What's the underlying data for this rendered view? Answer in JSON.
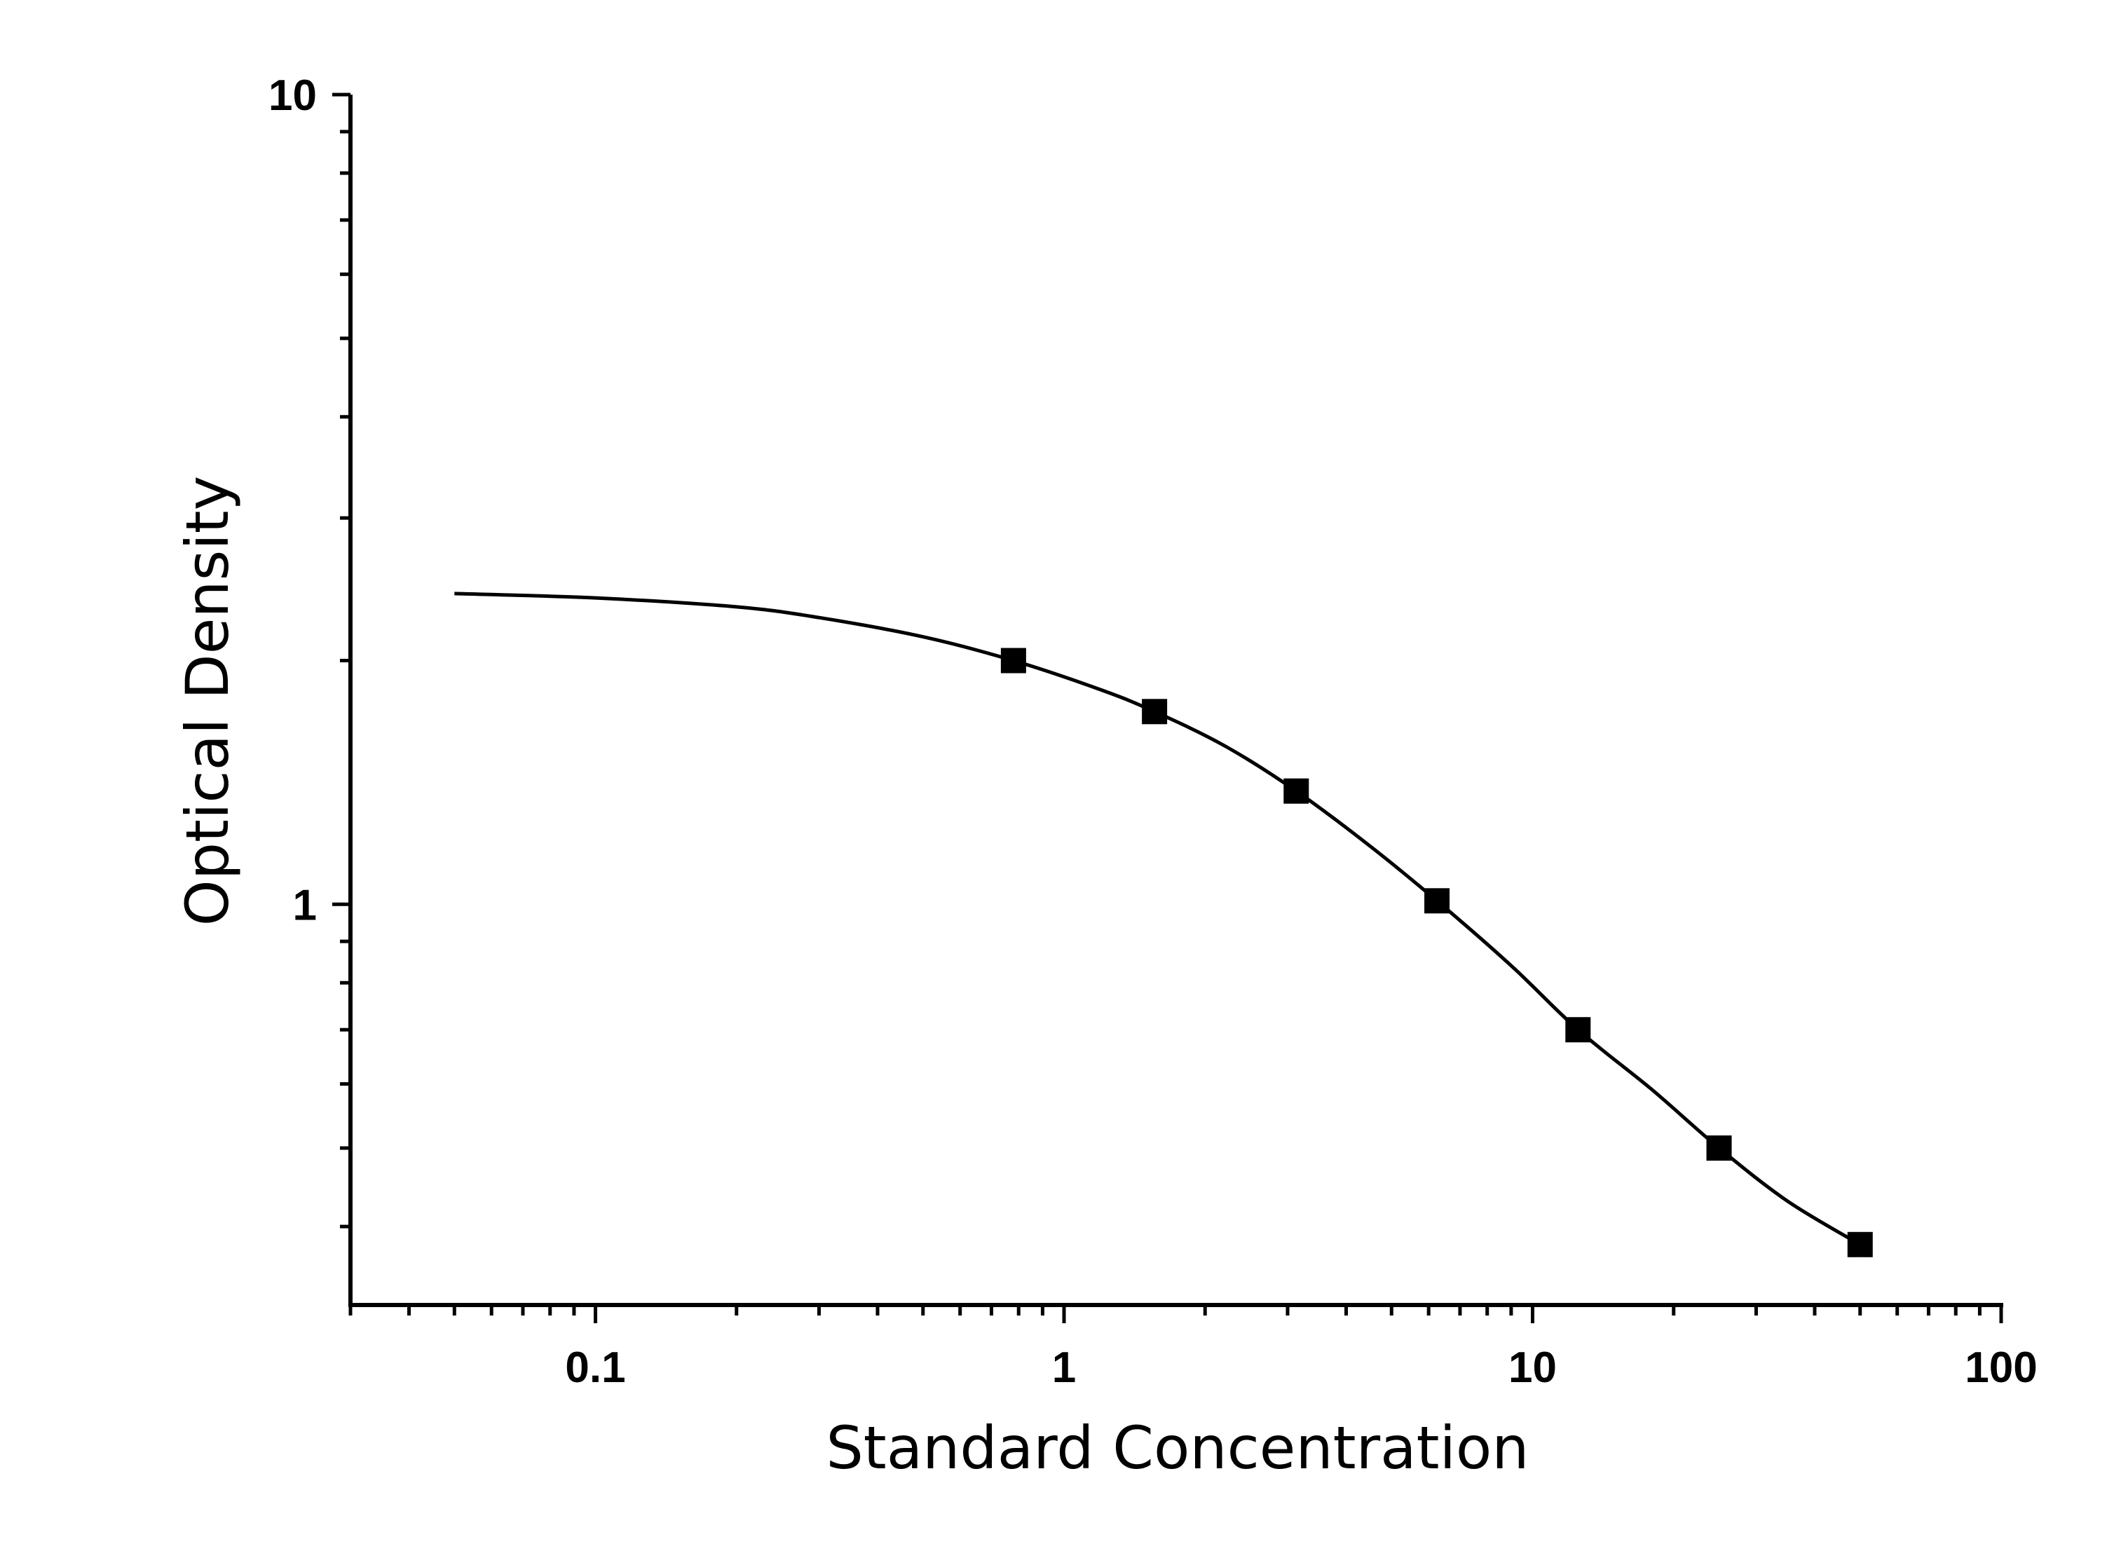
{
  "chart_data": {
    "type": "scatter",
    "xlabel": "Standard Concentration",
    "ylabel": "Optical Density",
    "x_scale": "log",
    "y_scale": "log",
    "xlim": [
      0.03,
      100
    ],
    "ylim": [
      0.32,
      10
    ],
    "x_ticks": [
      {
        "value": 0.1,
        "label": "0.1"
      },
      {
        "value": 1,
        "label": "1"
      },
      {
        "value": 10,
        "label": "10"
      },
      {
        "value": 100,
        "label": "100"
      }
    ],
    "y_ticks": [
      {
        "value": 1,
        "label": "1"
      },
      {
        "value": 10,
        "label": "10"
      }
    ],
    "grid": false,
    "series": [
      {
        "marker": "square",
        "color": "#000000",
        "points": [
          {
            "x": 0.78,
            "y": 2.0
          },
          {
            "x": 1.56,
            "y": 1.73
          },
          {
            "x": 3.13,
            "y": 1.38
          },
          {
            "x": 6.25,
            "y": 1.01
          },
          {
            "x": 12.5,
            "y": 0.7
          },
          {
            "x": 25,
            "y": 0.5
          },
          {
            "x": 50,
            "y": 0.38
          }
        ]
      }
    ],
    "fit_curve": {
      "color": "#000000",
      "points": [
        {
          "x": 0.05,
          "y": 2.42
        },
        {
          "x": 0.1,
          "y": 2.39
        },
        {
          "x": 0.2,
          "y": 2.33
        },
        {
          "x": 0.3,
          "y": 2.26
        },
        {
          "x": 0.5,
          "y": 2.14
        },
        {
          "x": 0.78,
          "y": 2.0
        },
        {
          "x": 1.2,
          "y": 1.84
        },
        {
          "x": 1.56,
          "y": 1.73
        },
        {
          "x": 2.2,
          "y": 1.57
        },
        {
          "x": 3.13,
          "y": 1.38
        },
        {
          "x": 4.5,
          "y": 1.18
        },
        {
          "x": 6.25,
          "y": 1.01
        },
        {
          "x": 9,
          "y": 0.84
        },
        {
          "x": 12.5,
          "y": 0.7
        },
        {
          "x": 18,
          "y": 0.59
        },
        {
          "x": 25,
          "y": 0.5
        },
        {
          "x": 35,
          "y": 0.43
        },
        {
          "x": 50,
          "y": 0.38
        }
      ]
    }
  }
}
